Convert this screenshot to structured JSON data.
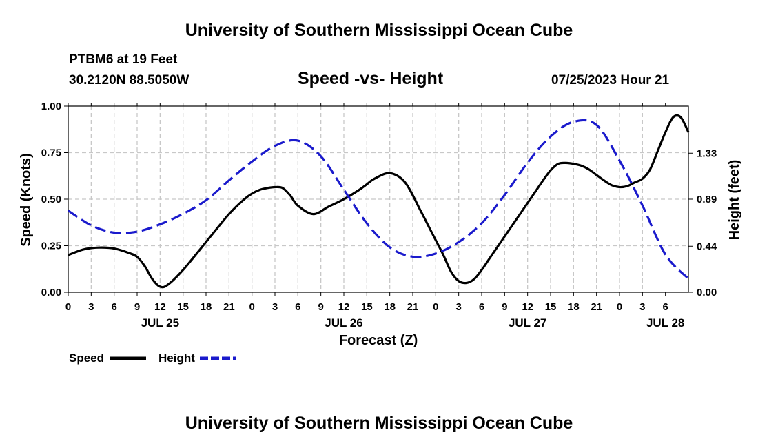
{
  "header": {
    "title": "University of Southern Mississippi Ocean Cube",
    "station": "PTBM6 at 19 Feet",
    "coords": "30.2120N  88.5050W",
    "subtitle": "Speed -vs- Height",
    "datetime": "07/25/2023 Hour 21"
  },
  "footer": {
    "title": "University of Southern Mississippi Ocean Cube"
  },
  "chart_data": {
    "type": "line",
    "title": "Speed -vs- Height",
    "xlabel": "Forecast (Z)",
    "ylabel": "Speed (Knots)",
    "y2label": "Height (feet)",
    "ylim": [
      0,
      1
    ],
    "y2lim": [
      0,
      1.78
    ],
    "xlim": [
      0,
      81
    ],
    "x_unit": "hours from Jul 25 00Z",
    "yticks": [
      "0.00",
      "0.25",
      "0.50",
      "0.75",
      "1.00"
    ],
    "y2ticks": [
      "0.00",
      "0.44",
      "0.89",
      "1.33"
    ],
    "y2tick_values": [
      0,
      0.44,
      0.89,
      1.33
    ],
    "xtick_labels": [
      "0",
      "3",
      "6",
      "9",
      "12",
      "15",
      "18",
      "21",
      "0",
      "3",
      "6",
      "9",
      "12",
      "15",
      "18",
      "21",
      "0",
      "3",
      "6",
      "9",
      "12",
      "15",
      "18",
      "21",
      "0",
      "3",
      "6"
    ],
    "day_labels": [
      {
        "label": "JUL 25",
        "hour": 12
      },
      {
        "label": "JUL 26",
        "hour": 36
      },
      {
        "label": "JUL 27",
        "hour": 60
      },
      {
        "label": "JUL 28",
        "hour": 78
      }
    ],
    "grid": true,
    "legend": "bottom-left",
    "series": [
      {
        "name": "Speed",
        "color": "#000000",
        "dash": "solid",
        "axis": "left",
        "x": [
          0,
          2,
          4,
          6,
          8,
          9,
          10,
          11,
          12,
          13,
          15,
          18,
          21,
          23,
          24,
          25,
          26,
          27,
          28,
          29,
          30,
          32,
          34,
          36,
          38,
          39,
          40,
          42,
          44,
          46,
          47,
          48,
          49,
          50,
          51,
          52,
          53,
          54,
          55,
          57,
          59,
          60,
          61,
          62,
          63,
          64,
          65,
          66,
          67,
          68,
          69,
          70,
          71,
          72,
          73,
          74,
          75,
          76,
          77,
          78,
          79,
          80,
          81
        ],
        "y": [
          0.2,
          0.23,
          0.24,
          0.235,
          0.21,
          0.19,
          0.14,
          0.07,
          0.03,
          0.04,
          0.12,
          0.27,
          0.42,
          0.5,
          0.53,
          0.55,
          0.56,
          0.565,
          0.56,
          0.52,
          0.465,
          0.42,
          0.46,
          0.5,
          0.55,
          0.58,
          0.61,
          0.64,
          0.59,
          0.44,
          0.36,
          0.28,
          0.2,
          0.11,
          0.06,
          0.05,
          0.07,
          0.12,
          0.18,
          0.3,
          0.42,
          0.48,
          0.54,
          0.6,
          0.655,
          0.69,
          0.695,
          0.69,
          0.68,
          0.66,
          0.63,
          0.6,
          0.575,
          0.565,
          0.57,
          0.59,
          0.61,
          0.66,
          0.76,
          0.86,
          0.94,
          0.94,
          0.86
        ]
      },
      {
        "name": "Height",
        "color": "#1a1acc",
        "dash": "dashed",
        "axis": "right",
        "x": [
          0,
          3,
          6,
          9,
          12,
          15,
          18,
          21,
          24,
          27,
          30,
          33,
          36,
          39,
          42,
          45,
          48,
          51,
          54,
          57,
          60,
          63,
          66,
          69,
          72,
          75,
          78,
          81
        ],
        "y": [
          0.78,
          0.64,
          0.57,
          0.58,
          0.65,
          0.75,
          0.88,
          1.07,
          1.25,
          1.4,
          1.45,
          1.3,
          0.98,
          0.66,
          0.43,
          0.34,
          0.37,
          0.48,
          0.66,
          0.93,
          1.24,
          1.49,
          1.63,
          1.6,
          1.26,
          0.83,
          0.36,
          0.13
        ]
      }
    ]
  }
}
